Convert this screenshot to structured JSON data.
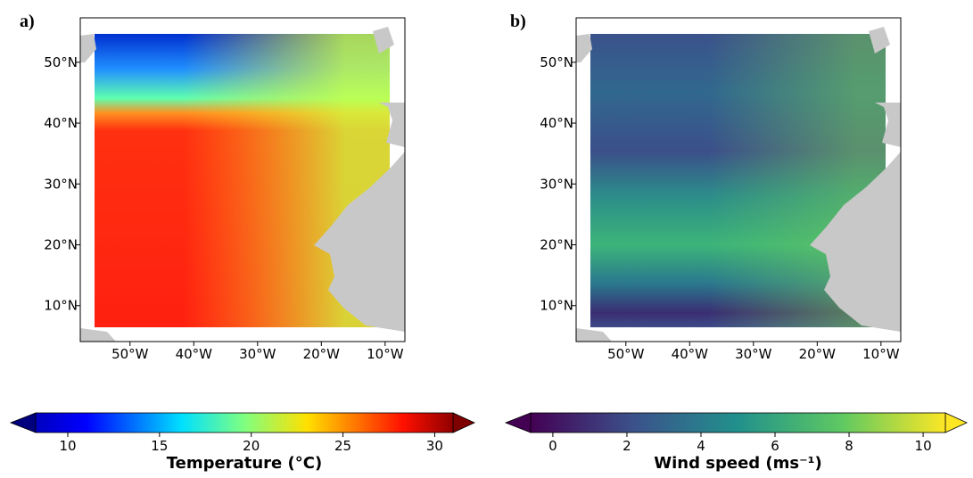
{
  "panels": [
    {
      "label": "a)",
      "xlim": [
        -57.8,
        -6.9
      ],
      "ylim": [
        4.1,
        57.3
      ],
      "xticks": [
        {
          "value": -50,
          "label": "50°W"
        },
        {
          "value": -40,
          "label": "40°W"
        },
        {
          "value": -30,
          "label": "30°W"
        },
        {
          "value": -20,
          "label": "20°W"
        },
        {
          "value": -10,
          "label": "10°W"
        }
      ],
      "yticks": [
        {
          "value": 10,
          "label": "10°N"
        },
        {
          "value": 20,
          "label": "20°N"
        },
        {
          "value": 30,
          "label": "30°N"
        },
        {
          "value": 40,
          "label": "40°N"
        },
        {
          "value": 50,
          "label": "50°N"
        }
      ],
      "colorbar": {
        "label": "Temperature (°C)",
        "cmap": "jet",
        "lim": [
          8.25,
          31
        ],
        "ticks": [
          10,
          15,
          20,
          25,
          30
        ]
      }
    },
    {
      "label": "b)",
      "xlim": [
        -57.8,
        -6.9
      ],
      "ylim": [
        4.1,
        57.3
      ],
      "xticks": [
        {
          "value": -50,
          "label": "50°W"
        },
        {
          "value": -40,
          "label": "40°W"
        },
        {
          "value": -30,
          "label": "30°W"
        },
        {
          "value": -20,
          "label": "20°W"
        },
        {
          "value": -10,
          "label": "10°W"
        }
      ],
      "yticks": [
        {
          "value": 10,
          "label": "10°N"
        },
        {
          "value": 20,
          "label": "20°N"
        },
        {
          "value": 30,
          "label": "30°N"
        },
        {
          "value": 40,
          "label": "40°N"
        },
        {
          "value": 50,
          "label": "50°N"
        }
      ],
      "colorbar": {
        "label": "Wind speed (ms⁻¹)",
        "cmap": "viridis",
        "lim": [
          -0.6,
          10.6
        ],
        "ticks": [
          0,
          2,
          4,
          6,
          8,
          10
        ]
      }
    }
  ]
}
